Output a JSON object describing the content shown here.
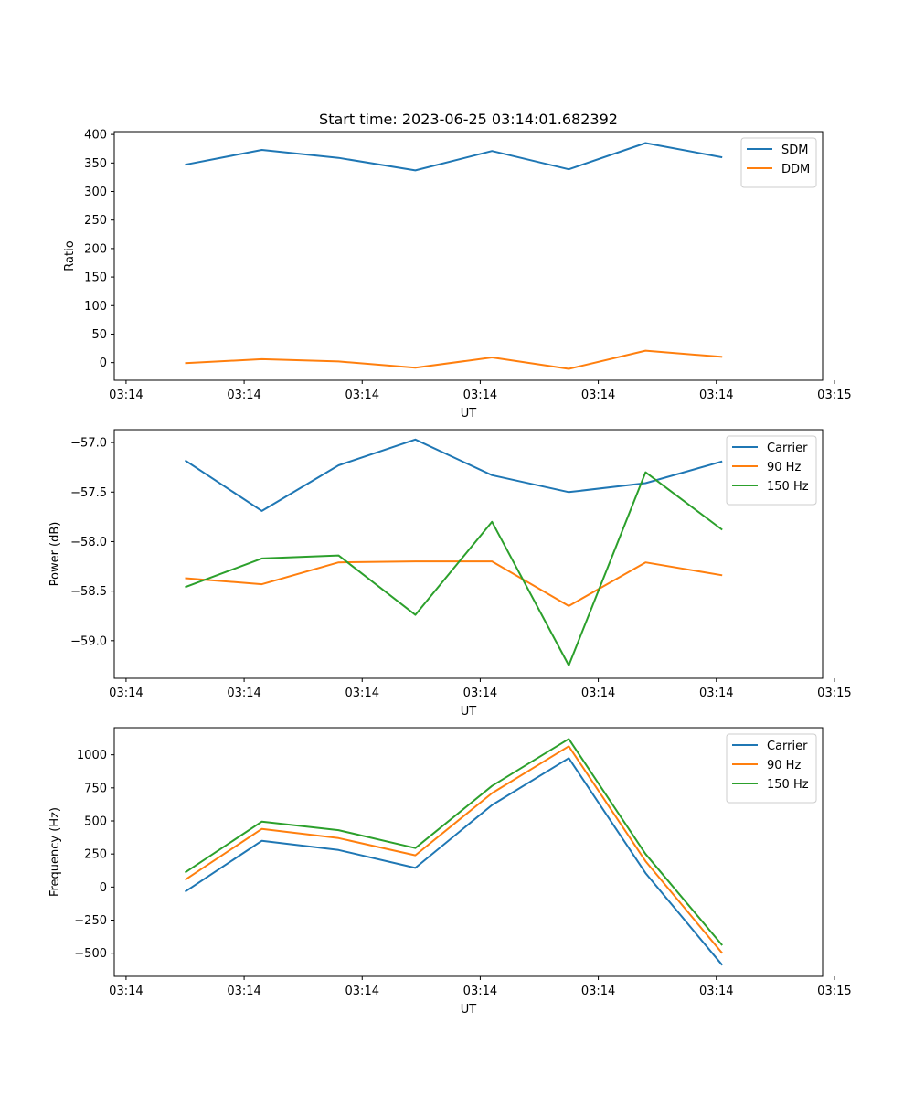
{
  "figure_title": "Start time: 2023-06-25 03:14:01.682392",
  "chart_data": [
    {
      "type": "line",
      "xlabel": "UT",
      "ylabel": "Ratio",
      "x_tick_labels": [
        "03:14",
        "03:14",
        "03:14",
        "03:14",
        "03:14",
        "03:14",
        "03:15"
      ],
      "x": [
        0.5,
        1.15,
        1.8,
        2.45,
        3.1,
        3.75,
        4.4,
        5.05
      ],
      "xlim": [
        -0.1,
        5.9
      ],
      "ylim": [
        -31,
        405
      ],
      "yticks": [
        0,
        50,
        100,
        150,
        200,
        250,
        300,
        350,
        400
      ],
      "y_tick_labels": [
        "0",
        "50",
        "100",
        "150",
        "200",
        "250",
        "300",
        "350",
        "400"
      ],
      "legend_position": "top-right",
      "series": [
        {
          "name": "SDM",
          "color": "#1f77b4",
          "values": [
            347,
            373,
            359,
            337,
            371,
            339,
            385,
            360
          ]
        },
        {
          "name": "DDM",
          "color": "#ff7f0e",
          "values": [
            -1,
            6,
            2,
            -9,
            9,
            -11,
            21,
            10
          ]
        }
      ]
    },
    {
      "type": "line",
      "xlabel": "UT",
      "ylabel": "Power (dB)",
      "x_tick_labels": [
        "03:14",
        "03:14",
        "03:14",
        "03:14",
        "03:14",
        "03:14",
        "03:15"
      ],
      "x": [
        0.5,
        1.15,
        1.8,
        2.45,
        3.1,
        3.75,
        4.4,
        5.05
      ],
      "xlim": [
        -0.1,
        5.9
      ],
      "ylim": [
        -59.38,
        -56.87
      ],
      "yticks": [
        -59.0,
        -58.5,
        -58.0,
        -57.5,
        -57.0
      ],
      "y_tick_labels": [
        "−59.0",
        "−58.5",
        "−58.0",
        "−57.5",
        "−57.0"
      ],
      "legend_position": "top-right",
      "series": [
        {
          "name": "Carrier",
          "color": "#1f77b4",
          "values": [
            -57.18,
            -57.69,
            -57.23,
            -56.97,
            -57.33,
            -57.5,
            -57.41,
            -57.19
          ]
        },
        {
          "name": "90 Hz",
          "color": "#ff7f0e",
          "values": [
            -58.37,
            -58.43,
            -58.21,
            -58.2,
            -58.2,
            -58.65,
            -58.21,
            -58.34
          ]
        },
        {
          "name": "150 Hz",
          "color": "#2ca02c",
          "values": [
            -58.46,
            -58.17,
            -58.14,
            -58.74,
            -57.8,
            -59.25,
            -57.3,
            -57.88
          ]
        }
      ]
    },
    {
      "type": "line",
      "xlabel": "UT",
      "ylabel": "Frequency (Hz)",
      "x_tick_labels": [
        "03:14",
        "03:14",
        "03:14",
        "03:14",
        "03:14",
        "03:14",
        "03:15"
      ],
      "x": [
        0.5,
        1.15,
        1.8,
        2.45,
        3.1,
        3.75,
        4.4,
        5.05
      ],
      "xlim": [
        -0.1,
        5.9
      ],
      "ylim": [
        -675,
        1205
      ],
      "yticks": [
        -500,
        -250,
        0,
        250,
        500,
        750,
        1000
      ],
      "y_tick_labels": [
        "−500",
        "−250",
        "0",
        "250",
        "500",
        "750",
        "1000"
      ],
      "legend_position": "top-right",
      "series": [
        {
          "name": "Carrier",
          "color": "#1f77b4",
          "values": [
            -35,
            350,
            280,
            145,
            620,
            975,
            105,
            -590
          ]
        },
        {
          "name": "90 Hz",
          "color": "#ff7f0e",
          "values": [
            55,
            440,
            370,
            240,
            710,
            1065,
            195,
            -500
          ]
        },
        {
          "name": "150 Hz",
          "color": "#2ca02c",
          "values": [
            110,
            495,
            430,
            295,
            765,
            1120,
            250,
            -440
          ]
        }
      ]
    }
  ]
}
